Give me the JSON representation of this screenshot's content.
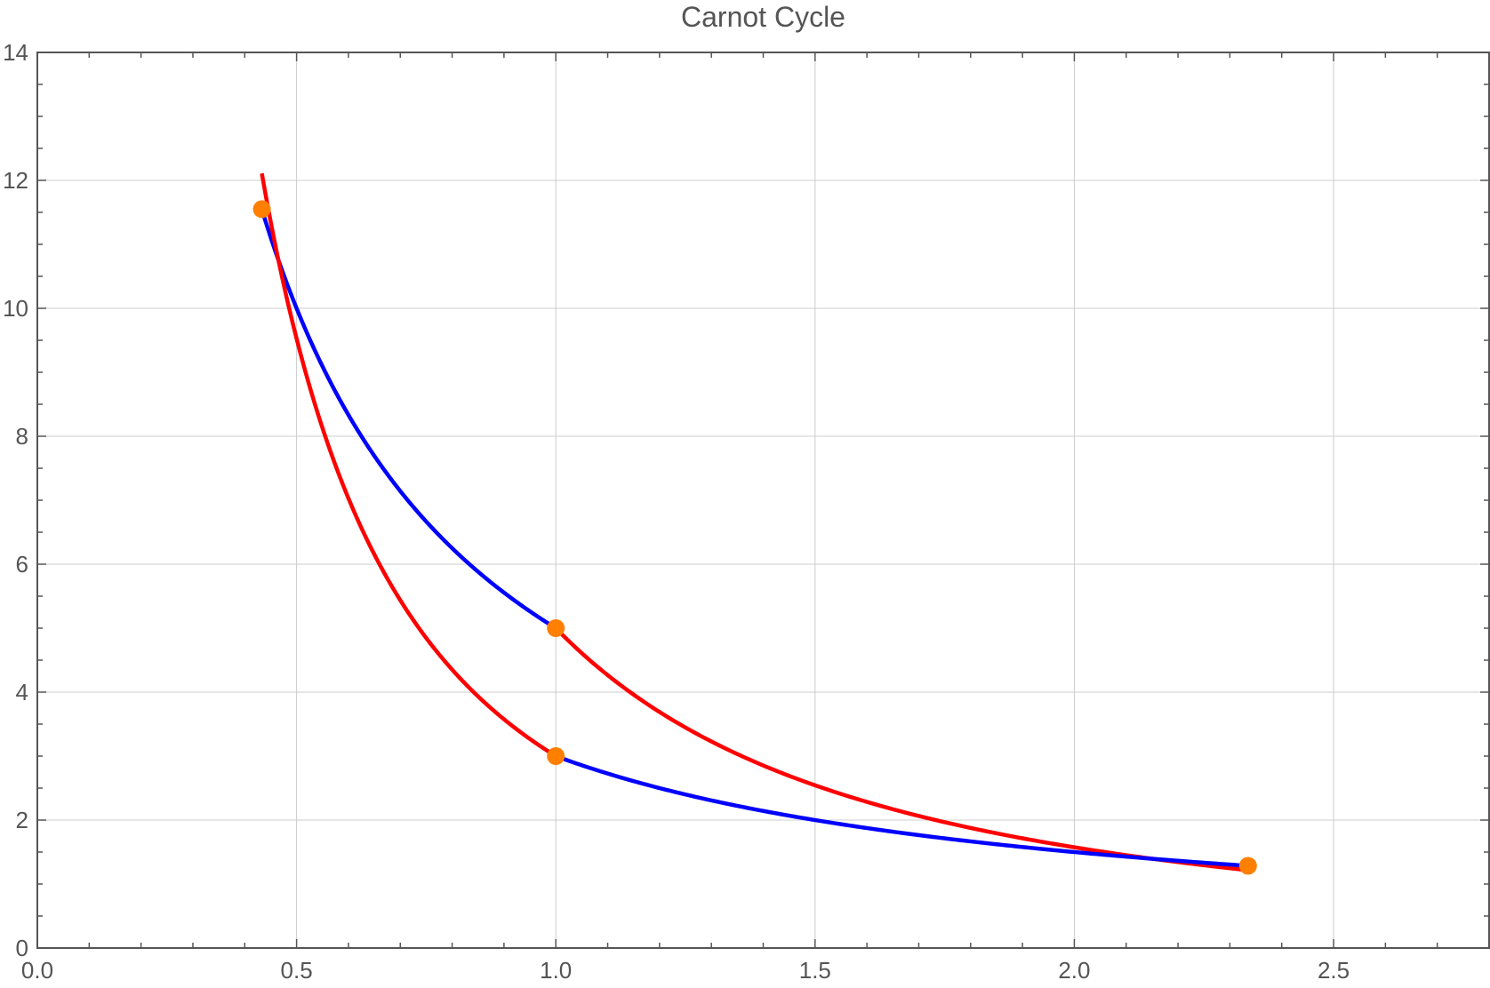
{
  "chart_data": {
    "type": "line",
    "title": "Carnot Cycle",
    "xlabel": "",
    "ylabel": "",
    "xlim": [
      0,
      2.8
    ],
    "ylim": [
      0,
      14
    ],
    "grid": true,
    "x_ticks": [
      0.0,
      0.5,
      1.0,
      1.5,
      2.0,
      2.5
    ],
    "x_tick_labels": [
      "0.0",
      "0.5",
      "1.0",
      "1.5",
      "2.0",
      "2.5"
    ],
    "y_ticks": [
      0,
      2,
      4,
      6,
      8,
      10,
      12,
      14
    ],
    "y_tick_labels": [
      "0",
      "2",
      "4",
      "6",
      "8",
      "10",
      "12",
      "14"
    ],
    "series": [
      {
        "kind": "isotherm",
        "color": "#0000ff",
        "constant": 5,
        "exponent": 1,
        "x_range": [
          0.433,
          1.0
        ]
      },
      {
        "kind": "adiabat",
        "color": "#ff0000",
        "constant": 5,
        "exponent": 1.667,
        "x_range": [
          1.0,
          2.335
        ]
      },
      {
        "kind": "isotherm",
        "color": "#0000ff",
        "constant": 3,
        "exponent": 1,
        "x_range": [
          1.0,
          2.335
        ]
      },
      {
        "kind": "adiabat",
        "color": "#ff0000",
        "constant": 3,
        "exponent": 1.667,
        "x_range": [
          0.433,
          1.0
        ]
      }
    ],
    "points": {
      "color": "#ff8000",
      "x": [
        0.433,
        1.0,
        1.0,
        2.335
      ],
      "y": [
        11.55,
        5.0,
        3.0,
        1.285
      ]
    }
  }
}
